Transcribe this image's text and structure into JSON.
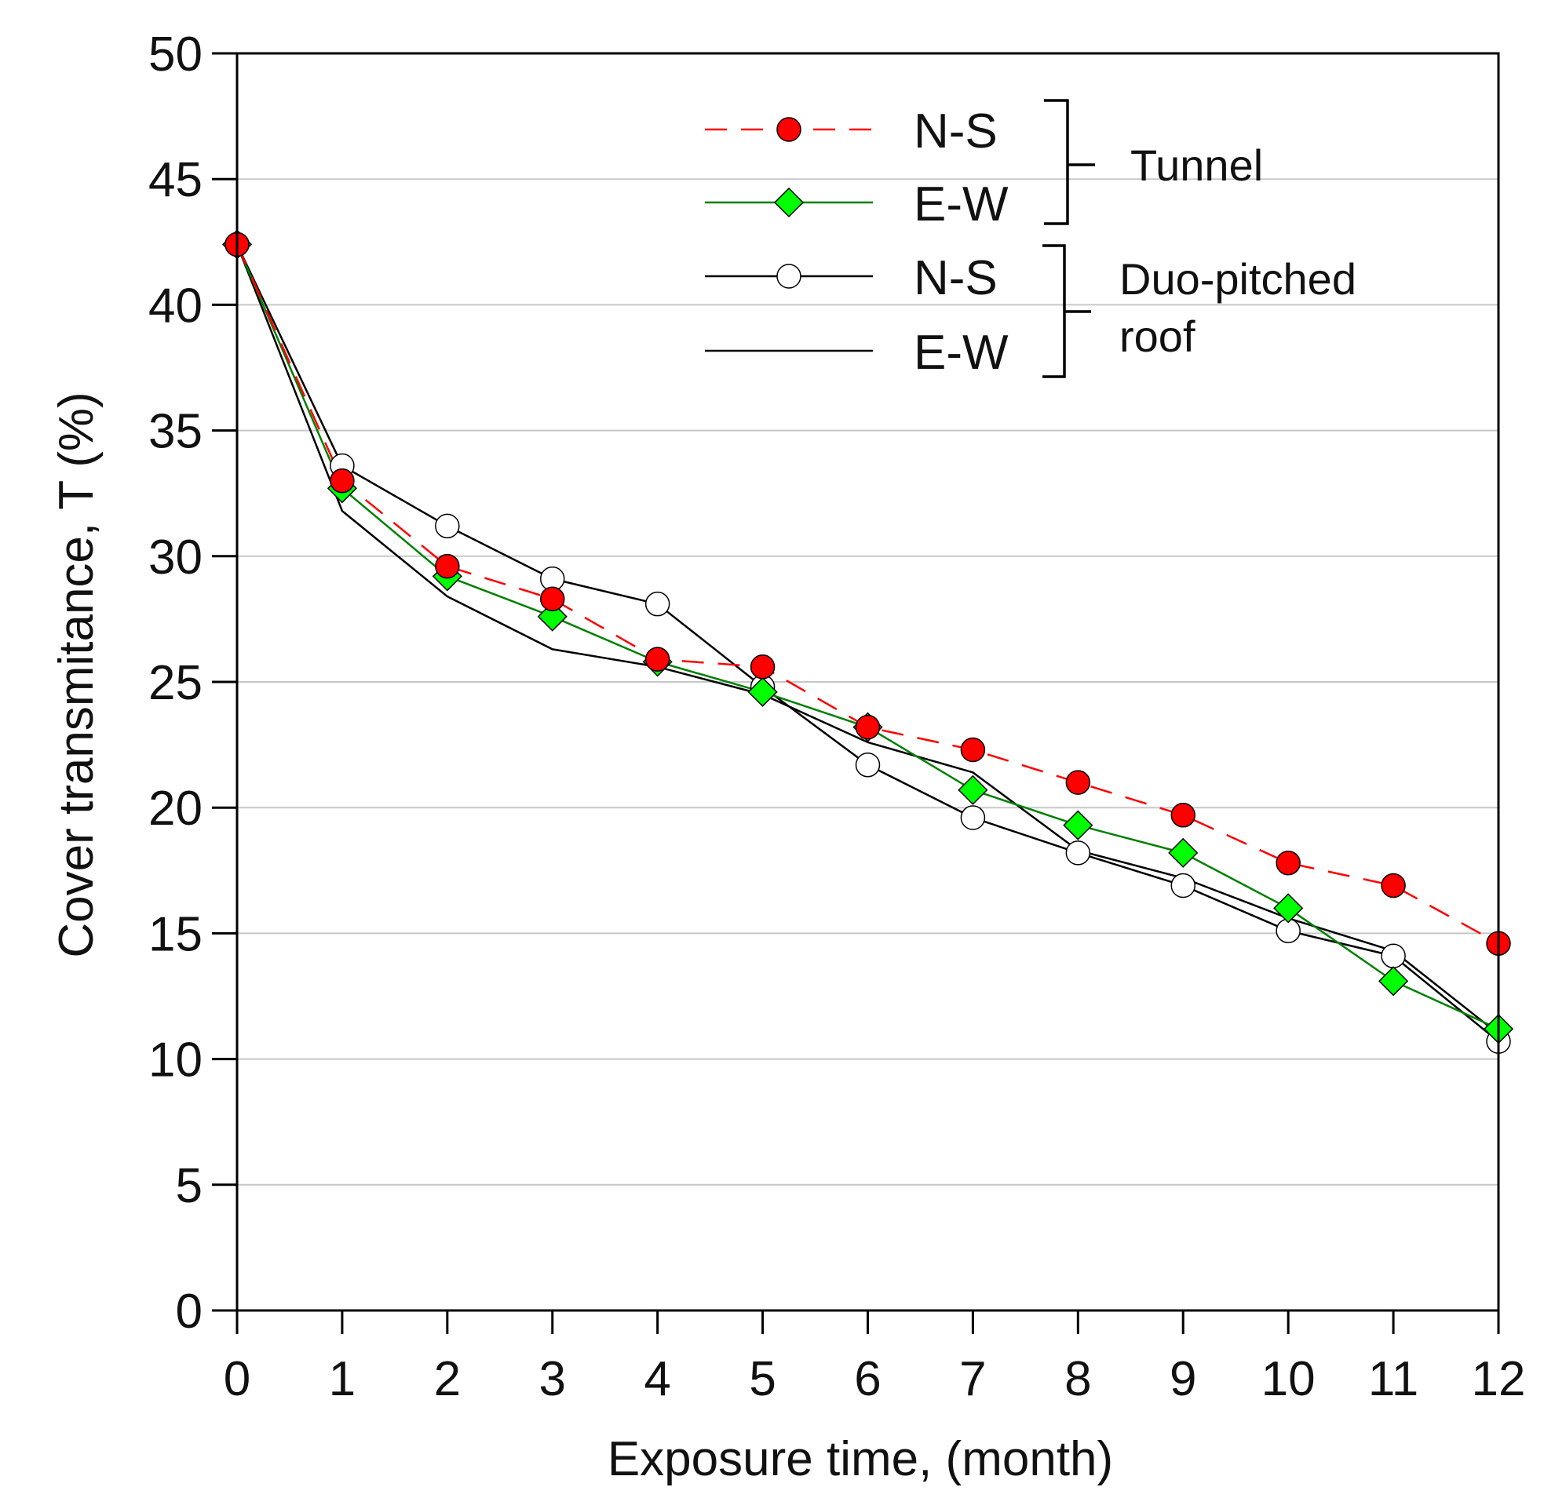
{
  "chart_data": {
    "type": "line",
    "xlabel": "Exposure time, (month)",
    "ylabel": "Cover transmitance, T (%)",
    "xlim": [
      0,
      12
    ],
    "ylim": [
      0,
      50
    ],
    "x_ticks": [
      0,
      1,
      2,
      3,
      4,
      5,
      6,
      7,
      8,
      9,
      10,
      11,
      12
    ],
    "y_ticks": [
      0,
      5,
      10,
      15,
      20,
      25,
      30,
      35,
      40,
      45,
      50
    ],
    "grid": "horizontal",
    "legend_position": "top-right",
    "x": [
      0,
      1,
      2,
      3,
      4,
      5,
      6,
      7,
      8,
      9,
      10,
      11,
      12
    ],
    "series": [
      {
        "name": "N-S",
        "group": "Tunnel",
        "color": "#ff0000",
        "line_style": "dashed",
        "marker": "circle-filled",
        "marker_color": "#ff0000",
        "values": [
          42.4,
          33.0,
          29.6,
          28.3,
          25.9,
          25.6,
          23.2,
          22.3,
          21.0,
          19.7,
          17.8,
          16.9,
          14.6
        ]
      },
      {
        "name": "E-W",
        "group": "Tunnel",
        "color": "#008000",
        "line_style": "solid",
        "marker": "diamond-filled",
        "marker_color": "#00ff00",
        "values": [
          42.4,
          32.7,
          29.2,
          27.6,
          25.8,
          24.6,
          23.2,
          20.7,
          19.3,
          18.2,
          16.0,
          13.1,
          11.2
        ]
      },
      {
        "name": "N-S",
        "group": "Duo-pitched roof",
        "color": "#000000",
        "line_style": "solid",
        "marker": "circle-open",
        "marker_color": "#ffffff",
        "values": [
          42.4,
          33.6,
          31.2,
          29.1,
          28.1,
          24.8,
          21.7,
          19.6,
          18.2,
          16.9,
          15.1,
          14.1,
          10.7
        ]
      },
      {
        "name": "E-W",
        "group": "Duo-pitched roof",
        "color": "#000000",
        "line_style": "solid",
        "marker": "none",
        "values": [
          42.4,
          31.8,
          28.4,
          26.3,
          25.6,
          24.5,
          22.6,
          21.4,
          18.3,
          17.2,
          15.6,
          14.3,
          11.0
        ]
      }
    ],
    "legend_groups": [
      "Tunnel",
      "Duo-pitched",
      "roof"
    ]
  }
}
